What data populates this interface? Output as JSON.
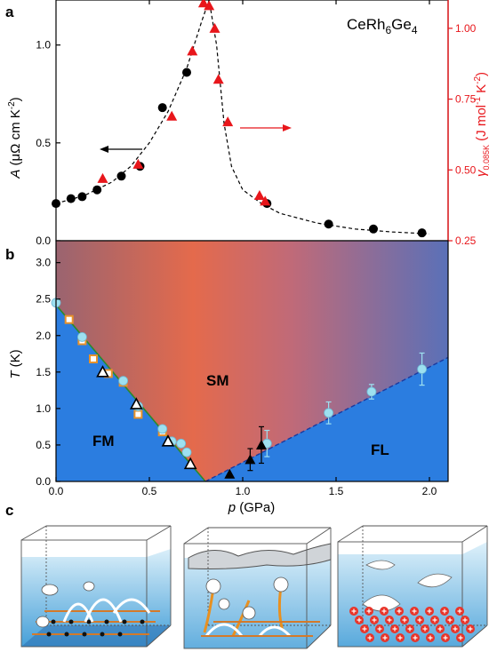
{
  "figure": {
    "panel_labels": [
      "a",
      "b",
      "c"
    ]
  },
  "chart_data": [
    {
      "type": "scatter",
      "panel": "a",
      "compound": {
        "base": "CeRh",
        "sub1": "6",
        "mid": "Ge",
        "sub2": "4"
      },
      "xlim": [
        0,
        2.1
      ],
      "ylim_left": [
        0,
        1.23
      ],
      "ylim_right": [
        0.25,
        1.1
      ],
      "left_axis": {
        "label_var": "A",
        "label_unit": "(μΩ cm K",
        "label_exp": "-2",
        "label_close": ")",
        "ticks": [
          0.0,
          0.5,
          1.0
        ],
        "tick_labels": [
          "0.0",
          "0.5",
          "1.0"
        ],
        "color": "#000000"
      },
      "right_axis": {
        "label_var": "γ",
        "label_sub": "0.085K",
        "label_unit": "(J mol",
        "label_exp1": "-1",
        "label_mid": " K",
        "label_exp2": "-2",
        "label_close": ")",
        "ticks": [
          0.25,
          0.5,
          0.75,
          1.0
        ],
        "tick_labels": [
          "0.25",
          "0.50",
          "0.75",
          "1.00"
        ],
        "color": "#e8161b"
      },
      "series": [
        {
          "axis": "left",
          "marker": "circle",
          "color": "#000000",
          "x": [
            0.0,
            0.08,
            0.14,
            0.22,
            0.35,
            0.45,
            0.57,
            0.7,
            1.13,
            1.46,
            1.7,
            1.96
          ],
          "y": [
            0.19,
            0.215,
            0.225,
            0.26,
            0.33,
            0.38,
            0.68,
            0.86,
            0.19,
            0.085,
            0.06,
            0.04
          ]
        },
        {
          "axis": "right",
          "marker": "triangle",
          "color": "#e8161b",
          "x": [
            0.25,
            0.44,
            0.62,
            0.73,
            0.79,
            0.82,
            0.85,
            0.87,
            0.92,
            1.09,
            1.12
          ],
          "y": [
            0.47,
            0.52,
            0.69,
            0.92,
            1.09,
            1.08,
            1.0,
            0.82,
            0.67,
            0.41,
            0.39
          ]
        }
      ],
      "fit_curve": {
        "x": [
          0.0,
          0.15,
          0.3,
          0.4,
          0.5,
          0.6,
          0.7,
          0.78,
          0.82,
          0.86,
          0.9,
          0.94,
          1.0,
          1.1,
          1.2,
          1.4,
          1.6,
          1.8,
          2.0
        ],
        "y": [
          0.19,
          0.23,
          0.3,
          0.38,
          0.5,
          0.66,
          0.88,
          1.12,
          1.25,
          1.0,
          0.6,
          0.38,
          0.26,
          0.19,
          0.14,
          0.09,
          0.06,
          0.045,
          0.035
        ]
      }
    },
    {
      "type": "scatter",
      "panel": "b",
      "xlabel_var": "p",
      "xlabel_unit": "(GPa)",
      "ylabel_var": "T",
      "ylabel_unit": "(K)",
      "xlim": [
        0,
        2.1
      ],
      "ylim": [
        0,
        3.3
      ],
      "xticks": [
        0.0,
        0.5,
        1.0,
        1.5,
        2.0
      ],
      "xtick_labels": [
        "0.0",
        "0.5",
        "1.0",
        "1.5",
        "2.0"
      ],
      "yticks": [
        0.0,
        0.5,
        1.0,
        1.5,
        2.0,
        2.5,
        3.0
      ],
      "ytick_labels": [
        "0.0",
        "0.5",
        "1.0",
        "1.5",
        "2.0",
        "2.5",
        "3.0"
      ],
      "regions": {
        "fm": "FM",
        "sm": "SM",
        "fl": "FL"
      },
      "fm_boundary": {
        "x": [
          0.0,
          0.8
        ],
        "y": [
          2.42,
          0.0
        ]
      },
      "fl_boundary": {
        "x": [
          0.8,
          2.1
        ],
        "y": [
          0.0,
          1.7
        ]
      },
      "series": [
        {
          "marker": "square-open",
          "color": "#e8922a",
          "x": [
            0.07,
            0.14,
            0.2,
            0.28,
            0.36,
            0.44,
            0.57
          ],
          "y": [
            2.22,
            1.93,
            1.68,
            1.48,
            1.36,
            0.92,
            0.68
          ]
        },
        {
          "marker": "circle",
          "color": "#9de0f0",
          "x": [
            0.0,
            0.14,
            0.36,
            0.44,
            0.57,
            0.62,
            0.67,
            0.7
          ],
          "y": [
            2.45,
            1.98,
            1.38,
            1.03,
            0.72,
            0.55,
            0.52,
            0.4
          ]
        },
        {
          "marker": "circle-errorbar",
          "color": "#9de0f0",
          "x": [
            1.13,
            1.46,
            1.69,
            1.96
          ],
          "y": [
            0.52,
            0.94,
            1.23,
            1.54
          ],
          "err": [
            0.18,
            0.15,
            0.1,
            0.22
          ]
        },
        {
          "marker": "triangle-open",
          "color": "#000000",
          "x": [
            0.25,
            0.43,
            0.6,
            0.72
          ],
          "y": [
            1.5,
            1.06,
            0.55,
            0.24
          ]
        },
        {
          "marker": "triangle",
          "color": "#000000",
          "x": [
            0.93,
            1.04,
            1.1
          ],
          "y": [
            0.1,
            0.3,
            0.5
          ],
          "err": [
            0.0,
            0.15,
            0.25
          ]
        }
      ]
    }
  ],
  "schematic_c": {
    "boxes": [
      "fm",
      "sm",
      "fl"
    ]
  }
}
